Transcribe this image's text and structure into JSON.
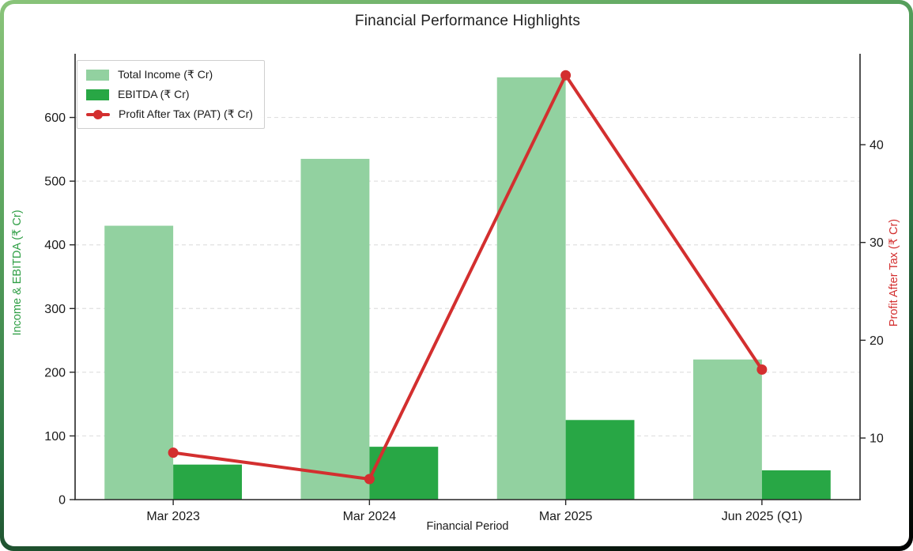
{
  "card": {
    "background": "#ffffff",
    "border_gradient": [
      "#8ac47a",
      "#5aa45e",
      "#2c7443",
      "#000000"
    ]
  },
  "chart_data": {
    "type": "bar",
    "combo": "grouped bars on left axis + line with markers on right axis",
    "title": "Financial Performance Highlights",
    "xlabel": "Financial Period",
    "ylabel_left": "Income & EBITDA (₹ Cr)",
    "ylabel_right": "Profit After Tax (₹ Cr)",
    "categories": [
      "Mar 2023",
      "Mar 2024",
      "Mar 2025",
      "Jun 2025 (Q1)"
    ],
    "series": [
      {
        "name": "Total Income (₹ Cr)",
        "chart_type": "bar",
        "axis": "left",
        "color": "#92d1a0",
        "values": [
          430,
          535,
          663,
          220
        ]
      },
      {
        "name": "EBITDA (₹ Cr)",
        "chart_type": "bar",
        "axis": "left",
        "color": "#28a745",
        "values": [
          55,
          83,
          125,
          46
        ]
      },
      {
        "name": "Profit After Tax (PAT) (₹ Cr)",
        "chart_type": "line",
        "axis": "right",
        "color": "#d32f2f",
        "values": [
          8.5,
          5.8,
          47.1,
          17
        ]
      }
    ],
    "left_axis": {
      "ticks": [
        0,
        100,
        200,
        300,
        400,
        500,
        600
      ],
      "ylim": [
        0,
        700
      ],
      "label_color": "#2e9e44",
      "tick_text_color": "#1a1a1a"
    },
    "right_axis": {
      "ticks": [
        10,
        20,
        30,
        40
      ],
      "ylim": [
        3.7,
        49.3
      ],
      "label_color": "#d32f2f",
      "tick_text_color": "#1a1a1a"
    },
    "grid": {
      "axis": "y",
      "style": "dashed",
      "color": "#e0e0e0"
    },
    "legend": {
      "position": "upper left",
      "entries": [
        "Total Income (₹ Cr)",
        "EBITDA (₹ Cr)",
        "Profit After Tax (PAT) (₹ Cr)"
      ]
    },
    "bar_width_fraction": 0.35
  }
}
